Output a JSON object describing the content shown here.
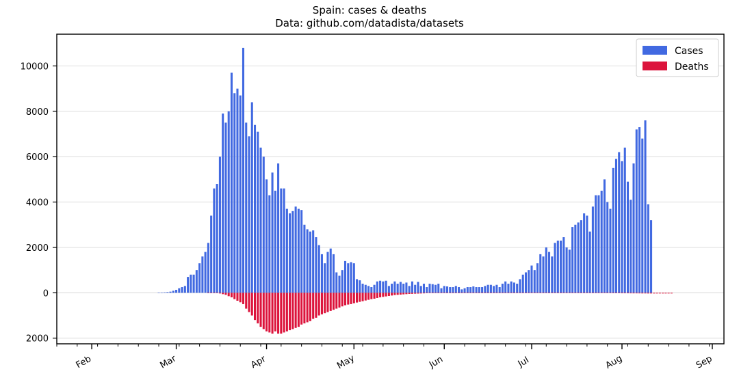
{
  "chart_data": {
    "type": "bar",
    "title": "Spain: cases & deaths",
    "subtitle": "Data: github.com/datadista/datasets",
    "xlabel": "",
    "ylabel": "",
    "x_start": "2020-01-31",
    "x_range": [
      "2020-01-20",
      "2020-09-05"
    ],
    "ylim": [
      -2250,
      11400
    ],
    "y_ticks": [
      10000,
      8000,
      6000,
      4000,
      2000,
      0,
      -2000
    ],
    "y_tick_labels": [
      "10000",
      "8000",
      "6000",
      "4000",
      "2000",
      "0",
      "2000"
    ],
    "x_ticks": [
      {
        "label": "Feb",
        "date": "2020-02-01"
      },
      {
        "label": "Mar",
        "date": "2020-03-01"
      },
      {
        "label": "Apr",
        "date": "2020-04-01"
      },
      {
        "label": "May",
        "date": "2020-05-01"
      },
      {
        "label": "Jun",
        "date": "2020-06-01"
      },
      {
        "label": "Jul",
        "date": "2020-07-01"
      },
      {
        "label": "Aug",
        "date": "2020-08-01"
      },
      {
        "label": "Sep",
        "date": "2020-09-01"
      }
    ],
    "grid": "horizontal",
    "legend_position": "top-right",
    "series": [
      {
        "name": "Cases",
        "color": "#4169e1",
        "values": [
          0,
          0,
          0,
          0,
          0,
          0,
          0,
          0,
          0,
          0,
          0,
          0,
          0,
          0,
          0,
          0,
          0,
          0,
          0,
          0,
          0,
          0,
          0,
          0,
          5,
          10,
          20,
          30,
          50,
          90,
          130,
          200,
          250,
          300,
          700,
          800,
          800,
          1000,
          1300,
          1600,
          1800,
          2200,
          3400,
          4600,
          4800,
          6000,
          7900,
          7500,
          8000,
          9700,
          8800,
          9000,
          8700,
          10800,
          7500,
          6900,
          8400,
          7400,
          7100,
          6400,
          6000,
          5000,
          4300,
          5300,
          4500,
          5700,
          4600,
          4600,
          3700,
          3500,
          3600,
          3800,
          3700,
          3650,
          3000,
          2800,
          2700,
          2750,
          2450,
          2100,
          1700,
          1300,
          1800,
          1950,
          1700,
          900,
          750,
          1000,
          1400,
          1300,
          1350,
          1300,
          600,
          550,
          400,
          350,
          300,
          250,
          350,
          500,
          530,
          500,
          530,
          300,
          400,
          500,
          400,
          480,
          400,
          450,
          300,
          500,
          350,
          480,
          300,
          400,
          250,
          400,
          380,
          350,
          400,
          200,
          300,
          280,
          250,
          250,
          300,
          250,
          150,
          200,
          250,
          250,
          280,
          250,
          250,
          250,
          300,
          350,
          350,
          300,
          350,
          250,
          400,
          500,
          400,
          500,
          450,
          400,
          600,
          800,
          900,
          1000,
          1200,
          1000,
          1300,
          1700,
          1600,
          2000,
          1800,
          1600,
          2200,
          2300,
          2300,
          2450,
          2000,
          1900,
          2900,
          3000,
          3100,
          3200,
          3500,
          3400,
          2700,
          3800,
          4300,
          4300,
          4500,
          5000,
          4000,
          3700,
          5500,
          5900,
          6200,
          5800,
          6400,
          4900,
          4100,
          5700,
          7200,
          7300,
          6800,
          7600,
          3900,
          3200
        ]
      },
      {
        "name": "Deaths",
        "color": "#dc143c",
        "values": [
          0,
          0,
          0,
          0,
          0,
          0,
          0,
          0,
          0,
          0,
          0,
          0,
          0,
          0,
          0,
          0,
          0,
          0,
          0,
          0,
          0,
          0,
          0,
          0,
          0,
          0,
          0,
          0,
          0,
          0,
          0,
          0,
          0,
          0,
          0,
          0,
          0,
          0,
          0,
          0,
          0,
          -2,
          -5,
          -10,
          -15,
          -30,
          -60,
          -90,
          -150,
          -200,
          -280,
          -350,
          -420,
          -500,
          -700,
          -850,
          -1000,
          -1200,
          -1350,
          -1500,
          -1600,
          -1700,
          -1750,
          -1800,
          -1700,
          -1800,
          -1800,
          -1750,
          -1700,
          -1650,
          -1600,
          -1550,
          -1500,
          -1400,
          -1350,
          -1300,
          -1250,
          -1150,
          -1100,
          -1000,
          -950,
          -900,
          -850,
          -800,
          -750,
          -700,
          -650,
          -600,
          -550,
          -520,
          -500,
          -460,
          -430,
          -400,
          -370,
          -340,
          -310,
          -280,
          -260,
          -230,
          -200,
          -180,
          -160,
          -140,
          -120,
          -100,
          -90,
          -80,
          -70,
          -60,
          -50,
          -45,
          -40,
          -35,
          -30,
          -25,
          -20,
          -18,
          -15,
          -12,
          -10,
          -8,
          -6,
          -5,
          -4,
          -3,
          -3,
          -2,
          -2,
          -2,
          -2,
          -2,
          -2,
          -2,
          -2,
          -2,
          -2,
          -2,
          -2,
          -2,
          -2,
          -2,
          -2,
          -2,
          -2,
          -2,
          -2,
          -2,
          -2,
          -2,
          -2,
          -2,
          -2,
          -3,
          -3,
          -3,
          -3,
          -3,
          -3,
          -4,
          -4,
          -4,
          -4,
          -5,
          -5,
          -5,
          -6,
          -6,
          -7,
          -8,
          -8,
          -9,
          -10,
          -10,
          -12,
          -12,
          -14,
          -15,
          -16,
          -18,
          -20,
          -20,
          -20,
          -22,
          -22,
          -22,
          -24,
          -25,
          -25,
          -26,
          -28,
          -28,
          -30,
          -30,
          -30,
          -30,
          -30,
          -30,
          -30,
          -30,
          -30
        ]
      }
    ]
  }
}
